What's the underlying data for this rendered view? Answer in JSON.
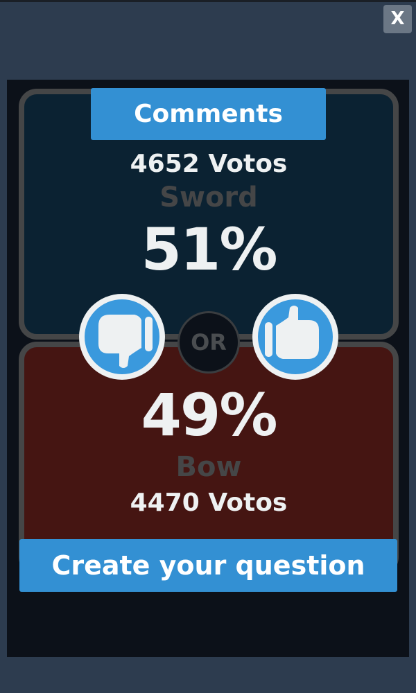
{
  "close_label": "X",
  "comments_label": "Comments",
  "option_a": {
    "name": "Sword",
    "percent": "51%",
    "votes": "4652 Votos",
    "color": "#0b2232"
  },
  "option_b": {
    "name": "Bow",
    "percent": "49%",
    "votes": "4470 Votos",
    "color": "#451512"
  },
  "or_label": "OR",
  "create_label": "Create your question",
  "icons": {
    "dislike": "thumbs-down-icon",
    "like": "thumbs-up-icon"
  },
  "accent": "#3390d3"
}
